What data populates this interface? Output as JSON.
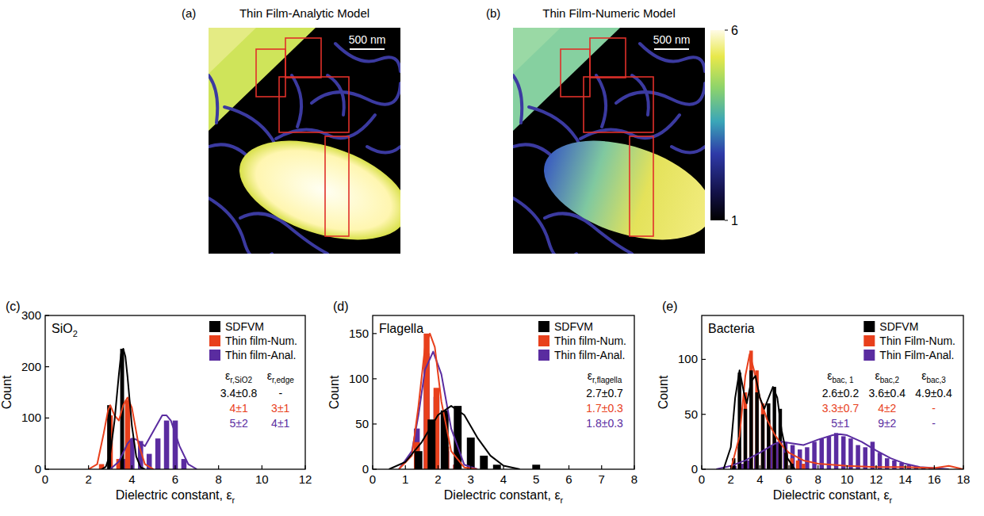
{
  "images": [
    {
      "letter": "(a)",
      "title": "Thin Film-Analytic Model",
      "scale_bar": "500 nm"
    },
    {
      "letter": "(b)",
      "title": "Thin Film-Numeric Model",
      "scale_bar": "500 nm"
    }
  ],
  "colorbar": {
    "range": [
      1,
      6
    ],
    "ticks": [
      1,
      6
    ]
  },
  "chart_data": [
    {
      "type": "histogram",
      "letter": "(c)",
      "title": {
        "base": "SiO",
        "sub": "2"
      },
      "x_label": {
        "base": "Dielectric constant, ε",
        "sub": "r"
      },
      "y_label": "Count",
      "xlim": [
        0,
        12
      ],
      "xticks": [
        0,
        2,
        4,
        6,
        8,
        10,
        12
      ],
      "ylim": [
        0,
        300
      ],
      "yticks": [
        0,
        100,
        200,
        300
      ],
      "legend": "upper right",
      "series": [
        {
          "name": "SDFVM",
          "color": "#000000",
          "bins": [
            2.8,
            3.1,
            3.4,
            3.7
          ],
          "values": [
            125,
            0,
            235
          ],
          "fit": {
            "x": [
              2.6,
              2.8,
              3.0,
              3.2,
              3.4,
              3.5,
              3.6,
              3.7,
              3.8,
              4.0,
              4.2,
              4.4,
              4.6
            ],
            "values": [
              0,
              5,
              30,
              95,
              185,
              225,
              235,
              220,
              180,
              85,
              25,
              4,
              0
            ]
          }
        },
        {
          "name": "Thin film-Num.",
          "color": "#e8401c",
          "bins": [
            2.4,
            2.8,
            3.2,
            3.6,
            4.0
          ],
          "values": [
            10,
            105,
            20,
            135
          ],
          "fit": {
            "x": [
              2.0,
              2.4,
              2.7,
              2.9,
              3.0,
              3.2,
              3.4,
              3.6,
              3.8,
              4.0,
              4.3,
              4.6,
              5.0
            ],
            "values": [
              0,
              10,
              70,
              115,
              125,
              105,
              95,
              125,
              140,
              120,
              50,
              10,
              0
            ]
          }
        },
        {
          "name": "Thin film-Anal.",
          "color": "#5a2ca0",
          "bins": [
            3.4,
            3.8,
            4.2,
            4.6,
            5.0,
            5.4,
            5.8,
            6.2,
            6.6
          ],
          "values": [
            20,
            60,
            55,
            30,
            60,
            95,
            95,
            20
          ],
          "fit": {
            "x": [
              3.0,
              3.4,
              3.8,
              4.0,
              4.2,
              4.6,
              5.0,
              5.4,
              5.6,
              5.8,
              6.2,
              6.6,
              7.0
            ],
            "values": [
              0,
              15,
              50,
              60,
              58,
              45,
              75,
              105,
              105,
              95,
              45,
              10,
              0
            ]
          }
        }
      ],
      "table": {
        "headers": [
          {
            "base": "ε",
            "sub": "r,SiO2"
          },
          {
            "base": "ε",
            "sub": "r,edge"
          }
        ],
        "rows": [
          [
            "3.4±0.8",
            "-"
          ],
          [
            "4±1",
            "3±1"
          ],
          [
            "5±2",
            "4±1"
          ]
        ]
      }
    },
    {
      "type": "histogram",
      "letter": "(d)",
      "title": "Flagella",
      "x_label": {
        "base": "Dielectric constant, ε",
        "sub": "r"
      },
      "y_label": "Count",
      "xlim": [
        0,
        8
      ],
      "xticks": [
        0,
        1,
        2,
        3,
        4,
        5,
        6,
        7,
        8
      ],
      "ylim": [
        0,
        170
      ],
      "yticks": [
        0,
        50,
        100,
        150
      ],
      "legend": "upper right",
      "series": [
        {
          "name": "SDFVM",
          "color": "#000000",
          "bins": [
            1.2,
            1.6,
            2.0,
            2.4,
            2.8,
            3.2,
            3.6,
            4.0,
            4.4,
            4.8,
            5.2
          ],
          "values": [
            20,
            55,
            65,
            70,
            35,
            15,
            5,
            0,
            0,
            5
          ],
          "fit": {
            "x": [
              0.5,
              1.0,
              1.5,
              2.0,
              2.4,
              2.8,
              3.2,
              3.6,
              4.0,
              4.5
            ],
            "values": [
              0,
              8,
              30,
              60,
              70,
              60,
              35,
              15,
              4,
              0
            ]
          }
        },
        {
          "name": "Thin film-Num.",
          "color": "#e8401c",
          "bins": [
            1.2,
            1.5,
            1.8,
            2.1,
            2.4,
            2.7
          ],
          "values": [
            30,
            150,
            90,
            25,
            5
          ],
          "fit": {
            "x": [
              0.8,
              1.2,
              1.4,
              1.6,
              1.75,
              1.9,
              2.1,
              2.4,
              2.8,
              3.2
            ],
            "values": [
              0,
              15,
              70,
              135,
              150,
              135,
              75,
              20,
              2,
              0
            ]
          }
        },
        {
          "name": "Thin film-Anal.",
          "color": "#5a2ca0",
          "bins": [
            1.2,
            1.5,
            1.8,
            2.1,
            2.4,
            2.7
          ],
          "values": [
            45,
            128,
            80,
            20,
            5
          ],
          "fit": {
            "x": [
              0.8,
              1.2,
              1.4,
              1.6,
              1.85,
              2.1,
              2.4,
              2.8,
              3.2
            ],
            "values": [
              0,
              20,
              60,
              110,
              130,
              105,
              45,
              5,
              0
            ]
          }
        }
      ],
      "table": {
        "headers": [
          {
            "base": "ε",
            "sub": "r,flagella"
          }
        ],
        "rows": [
          [
            "2.7±0.7"
          ],
          [
            "1.7±0.3"
          ],
          [
            "1.8±0.3"
          ]
        ]
      }
    },
    {
      "type": "histogram",
      "letter": "(e)",
      "title": "Bacteria",
      "x_label": {
        "base": "Dielectric constant, ε",
        "sub": "r"
      },
      "y_label": "Count",
      "xlim": [
        0,
        18
      ],
      "xticks": [
        0,
        2,
        4,
        6,
        8,
        10,
        12,
        14,
        16,
        18
      ],
      "ylim": [
        0,
        140
      ],
      "yticks": [
        0,
        50,
        100
      ],
      "legend": "upper right",
      "series": [
        {
          "name": "SDFVM",
          "color": "#000000",
          "bins": [
            2.0,
            2.4,
            2.8,
            3.2,
            3.6,
            4.0,
            4.4,
            4.8,
            5.2,
            5.6,
            6.0,
            6.4
          ],
          "values": [
            10,
            88,
            55,
            90,
            70,
            50,
            60,
            75,
            55,
            15,
            5
          ],
          "fit": {
            "x": [
              1.5,
              2.0,
              2.3,
              2.6,
              2.9,
              3.1,
              3.4,
              3.7,
              4.0,
              4.3,
              4.6,
              4.9,
              5.2,
              5.5,
              5.9,
              6.4
            ],
            "values": [
              0,
              20,
              65,
              90,
              70,
              60,
              80,
              85,
              65,
              55,
              65,
              75,
              65,
              35,
              10,
              0
            ]
          }
        },
        {
          "name": "Thin Film-Num.",
          "color": "#e8401c",
          "bins": [
            2.4,
            2.8,
            3.2,
            3.6,
            4.0,
            4.4,
            4.8,
            5.2,
            5.6,
            6.0,
            6.4,
            6.8,
            7.2
          ],
          "values": [
            20,
            70,
            108,
            90,
            60,
            45,
            35,
            25,
            15,
            10,
            8,
            5
          ],
          "fit": {
            "x": [
              2.0,
              2.6,
              3.0,
              3.3,
              3.6,
              4.0,
              4.5,
              5.0,
              5.5,
              6.0,
              7.0,
              8.0,
              10,
              12,
              14,
              16,
              17,
              18
            ],
            "values": [
              0,
              30,
              85,
              105,
              90,
              65,
              45,
              32,
              22,
              15,
              8,
              5,
              3,
              2,
              2,
              1,
              3,
              0
            ]
          }
        },
        {
          "name": "Thin Film-Anal.",
          "color": "#5a2ca0",
          "bins": [
            2.0,
            2.5,
            3.0,
            3.5,
            4.0,
            4.5,
            5.0,
            5.5,
            6.0,
            6.5,
            7.0,
            7.5,
            8.0,
            8.5,
            9.0,
            9.5,
            10.0,
            10.5,
            11.0,
            11.5,
            12.0,
            12.5,
            13.0,
            13.5,
            14.0,
            14.5,
            15.0,
            15.5,
            16.0
          ],
          "values": [
            3,
            5,
            8,
            12,
            18,
            22,
            25,
            24,
            22,
            18,
            20,
            25,
            28,
            30,
            33,
            30,
            28,
            22,
            20,
            25,
            15,
            10,
            8,
            6,
            4,
            3,
            2,
            1
          ],
          "fit": {
            "x": [
              1,
              2,
              3,
              4,
              5,
              5.5,
              6,
              7,
              8,
              9,
              9.5,
              10,
              11,
              12,
              13,
              14,
              15,
              16,
              17
            ],
            "values": [
              0,
              3,
              8,
              15,
              23,
              25,
              24,
              22,
              27,
              31,
              32,
              31,
              25,
              17,
              10,
              5,
              2,
              1,
              0
            ]
          }
        }
      ],
      "table": {
        "headers": [
          {
            "base": "ε",
            "sub": "bac, 1"
          },
          {
            "base": "ε",
            "sub": "bac,2"
          },
          {
            "base": "ε",
            "sub": "bac,3"
          }
        ],
        "rows": [
          [
            "2.6±0.2",
            "3.6±0.4",
            "4.9±0.4"
          ],
          [
            "3.3±0.7",
            "4±2",
            "-"
          ],
          [
            "5±1",
            "9±2",
            "-"
          ]
        ]
      }
    }
  ]
}
